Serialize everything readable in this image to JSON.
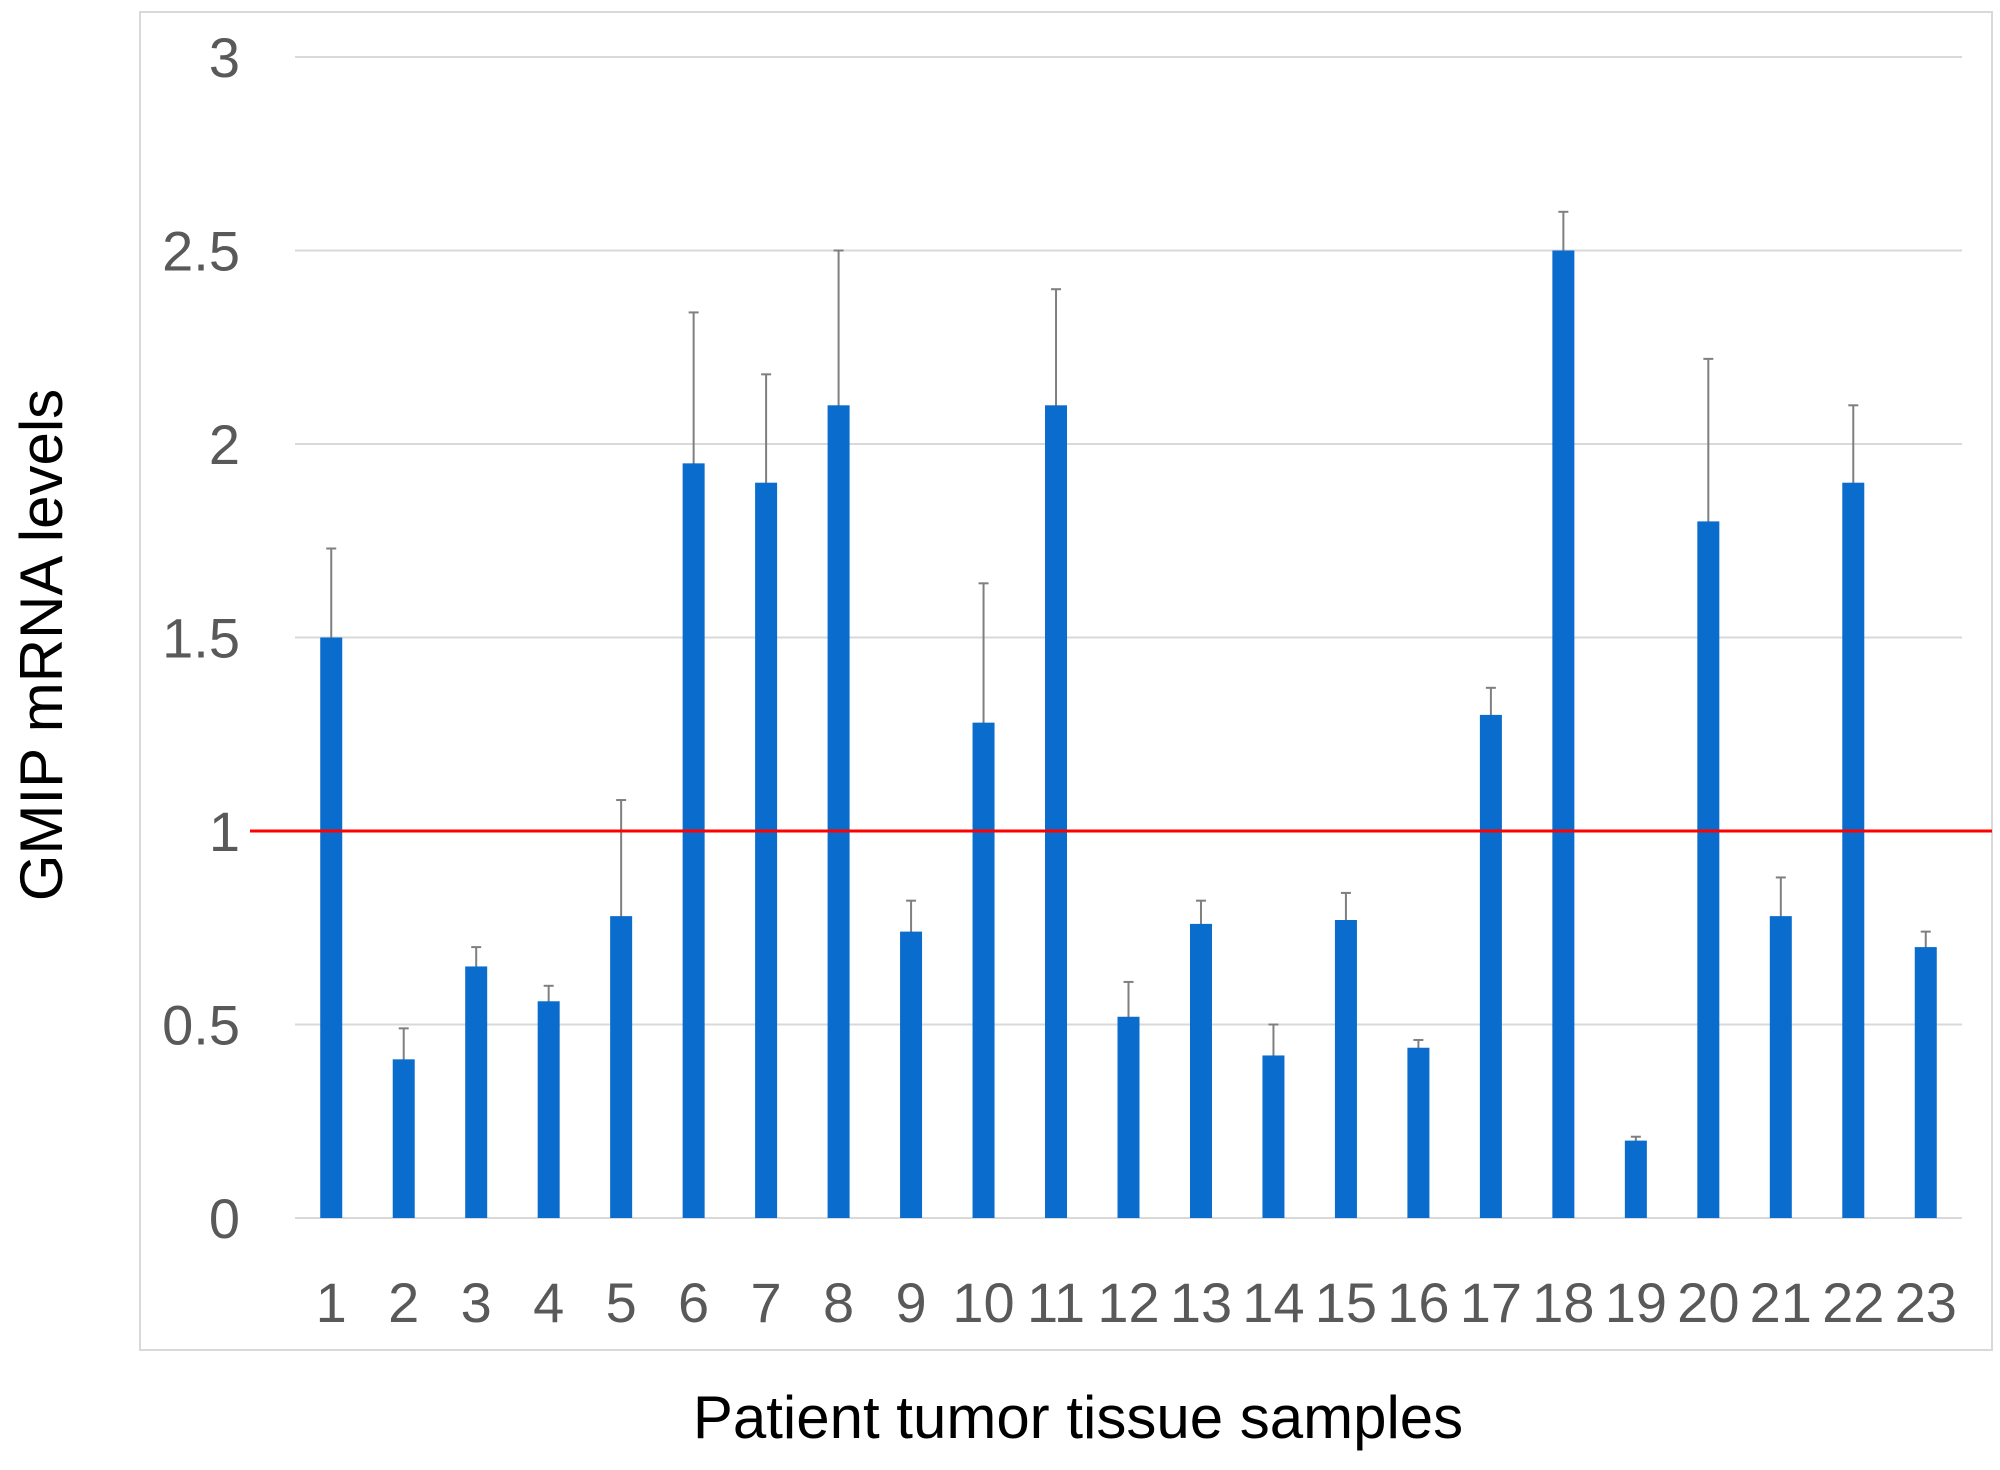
{
  "chart_data": {
    "type": "bar",
    "title": "",
    "xlabel": "Patient tumor tissue samples",
    "ylabel": "GMIP mRNA levels",
    "categories": [
      "1",
      "2",
      "3",
      "4",
      "5",
      "6",
      "7",
      "8",
      "9",
      "10",
      "11",
      "12",
      "13",
      "14",
      "15",
      "16",
      "17",
      "18",
      "19",
      "20",
      "21",
      "22",
      "23"
    ],
    "values": [
      1.5,
      0.41,
      0.65,
      0.56,
      0.78,
      1.95,
      1.9,
      2.1,
      0.74,
      1.28,
      2.1,
      0.52,
      0.76,
      0.42,
      0.77,
      0.44,
      1.3,
      2.5,
      0.2,
      1.8,
      0.78,
      1.9,
      0.7
    ],
    "error": [
      0.23,
      0.08,
      0.05,
      0.04,
      0.3,
      0.39,
      0.28,
      0.4,
      0.08,
      0.36,
      0.3,
      0.09,
      0.06,
      0.08,
      0.07,
      0.02,
      0.07,
      0.1,
      0.01,
      0.42,
      0.1,
      0.2,
      0.04
    ],
    "ylim": [
      0,
      3
    ],
    "yticks": [
      "0",
      "0.5",
      "1",
      "1.5",
      "2",
      "2.5",
      "3"
    ],
    "reference_line": 1,
    "grid": true,
    "legend": "none",
    "colors": {
      "bar": "#0a6ccc",
      "reference_line": "#ff0000",
      "grid": "#d9d9d9",
      "error_bar": "#7f7f7f"
    }
  }
}
